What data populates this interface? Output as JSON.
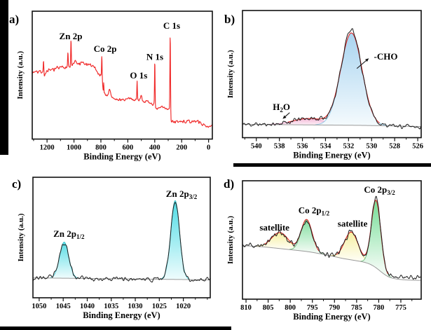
{
  "figure": {
    "background": "#ffffff",
    "axis_color": "#111111",
    "panel_ids": [
      "a",
      "b",
      "c",
      "d"
    ]
  },
  "chart_data": [
    {
      "id": "a",
      "panel_label": "a)",
      "type": "line",
      "title": "",
      "xlabel": "Binding Energy (eV)",
      "ylabel": "Intensity (a.u.)",
      "x_range": [
        1310,
        -28
      ],
      "x_ticks": [
        1200,
        1000,
        800,
        600,
        400,
        200,
        0
      ],
      "x_minor_step": 100,
      "ylim": [
        0,
        100
      ],
      "grid": false,
      "line_color": "#f02a2a",
      "noise_amplitude": 0.85,
      "base_points": [
        [
          1308,
          52
        ],
        [
          1295,
          52.5
        ],
        [
          1283,
          53.5
        ],
        [
          1270,
          52.5
        ],
        [
          1258,
          53
        ],
        [
          1246,
          52.2
        ],
        [
          1236,
          53
        ],
        [
          1230,
          52.5
        ],
        [
          1220,
          49.8
        ],
        [
          1212,
          51.5
        ],
        [
          1204,
          53
        ],
        [
          1196,
          52.2
        ],
        [
          1188,
          53.8
        ],
        [
          1180,
          53
        ],
        [
          1172,
          54.5
        ],
        [
          1164,
          53.5
        ],
        [
          1156,
          55
        ],
        [
          1148,
          54.2
        ],
        [
          1140,
          55.3
        ],
        [
          1132,
          54.6
        ],
        [
          1124,
          56.2
        ],
        [
          1116,
          55.2
        ],
        [
          1108,
          55.8
        ],
        [
          1100,
          55.4
        ],
        [
          1092,
          56.2
        ],
        [
          1084,
          56.8
        ],
        [
          1076,
          56.2
        ],
        [
          1068,
          56.6
        ],
        [
          1060,
          56.2
        ],
        [
          1052,
          56.5
        ],
        [
          1044,
          56.2
        ],
        [
          1036,
          56.6
        ],
        [
          1028,
          56.2
        ],
        [
          1020,
          57
        ],
        [
          1012,
          57.8
        ],
        [
          1004,
          58.8
        ],
        [
          996,
          60
        ],
        [
          988,
          60.8
        ],
        [
          980,
          59.2
        ],
        [
          972,
          58.6
        ],
        [
          964,
          59.2
        ],
        [
          956,
          58.4
        ],
        [
          948,
          59
        ],
        [
          940,
          60
        ],
        [
          932,
          59.6
        ],
        [
          924,
          58.6
        ],
        [
          916,
          58.2
        ],
        [
          908,
          58.6
        ],
        [
          900,
          58.2
        ],
        [
          892,
          57.8
        ],
        [
          884,
          57.6
        ],
        [
          876,
          58
        ],
        [
          868,
          57.2
        ],
        [
          860,
          57.6
        ],
        [
          852,
          56.8
        ],
        [
          844,
          56.2
        ],
        [
          836,
          54.4
        ],
        [
          828,
          52.6
        ],
        [
          820,
          51
        ],
        [
          812,
          50.2
        ],
        [
          806,
          50
        ],
        [
          800,
          50.4
        ],
        [
          796,
          49.8
        ],
        [
          791,
          47.5
        ],
        [
          787,
          43
        ],
        [
          784,
          39.5
        ],
        [
          781,
          36.5
        ],
        [
          777,
          35
        ],
        [
          771,
          35.6
        ],
        [
          764,
          34.6
        ],
        [
          757,
          34
        ],
        [
          750,
          34.6
        ],
        [
          743,
          36.6
        ],
        [
          736,
          38
        ],
        [
          730,
          36.6
        ],
        [
          723,
          34
        ],
        [
          716,
          32.6
        ],
        [
          709,
          32
        ],
        [
          700,
          31.5
        ],
        [
          690,
          31
        ],
        [
          678,
          30.6
        ],
        [
          666,
          30.5
        ],
        [
          654,
          30.8
        ],
        [
          642,
          31.4
        ],
        [
          632,
          30.8
        ],
        [
          622,
          30.5
        ],
        [
          612,
          30.8
        ],
        [
          602,
          31
        ],
        [
          592,
          31.4
        ],
        [
          582,
          32
        ],
        [
          572,
          31.5
        ],
        [
          562,
          31
        ],
        [
          552,
          30.8
        ],
        [
          542,
          30.6
        ],
        [
          534,
          30.5
        ],
        [
          526,
          30.4
        ],
        [
          518,
          30.6
        ],
        [
          511,
          31.8
        ],
        [
          504,
          33.4
        ],
        [
          497,
          33
        ],
        [
          490,
          30.6
        ],
        [
          483,
          30
        ],
        [
          475,
          29.5
        ],
        [
          466,
          29.2
        ],
        [
          457,
          28.9
        ],
        [
          448,
          28.7
        ],
        [
          439,
          28.3
        ],
        [
          430,
          28
        ],
        [
          421,
          27.7
        ],
        [
          413,
          27.4
        ],
        [
          407,
          27.1
        ],
        [
          402,
          26.2
        ],
        [
          398,
          23.6
        ],
        [
          393,
          23.2
        ],
        [
          387,
          23.3
        ],
        [
          380,
          23.5
        ],
        [
          373,
          23.7
        ],
        [
          365,
          24
        ],
        [
          357,
          24.6
        ],
        [
          350,
          25.2
        ],
        [
          343,
          25
        ],
        [
          336,
          24.8
        ],
        [
          329,
          24.6
        ],
        [
          322,
          24.1
        ],
        [
          315,
          23.9
        ],
        [
          308,
          23.6
        ],
        [
          301,
          23.5
        ],
        [
          294,
          23.8
        ],
        [
          288,
          22
        ],
        [
          283,
          16.5
        ],
        [
          278,
          14.5
        ],
        [
          272,
          13.9
        ],
        [
          265,
          13.6
        ],
        [
          257,
          13.7
        ],
        [
          249,
          13.4
        ],
        [
          241,
          13.7
        ],
        [
          233,
          13.5
        ],
        [
          225,
          13.7
        ],
        [
          217,
          13.4
        ],
        [
          209,
          13.6
        ],
        [
          201,
          13.4
        ],
        [
          193,
          13.7
        ],
        [
          185,
          13.5
        ],
        [
          177,
          13.6
        ],
        [
          169,
          13.4
        ],
        [
          161,
          13.6
        ],
        [
          153,
          13.8
        ],
        [
          146,
          14
        ],
        [
          139,
          13.7
        ],
        [
          131,
          13.5
        ],
        [
          123,
          13.7
        ],
        [
          115,
          13.6
        ],
        [
          107,
          13.7
        ],
        [
          99,
          13.6
        ],
        [
          93,
          14.4
        ],
        [
          87,
          14.7
        ],
        [
          81,
          14.1
        ],
        [
          74,
          13.3
        ],
        [
          67,
          13
        ],
        [
          60,
          12.8
        ],
        [
          53,
          12.2
        ],
        [
          46,
          11.2
        ],
        [
          39,
          11
        ],
        [
          31,
          10.8
        ],
        [
          23,
          10.6
        ],
        [
          15,
          10.4
        ],
        [
          7,
          10.3
        ],
        [
          0,
          10.2
        ]
      ],
      "spikes": [
        {
          "name": "bump-1226",
          "center": 1226,
          "sigma": 2.2,
          "amp": 9
        },
        {
          "name": "Zn 2p1/2",
          "center": 1045,
          "sigma": 2.2,
          "amp": 11
        },
        {
          "name": "Zn 2p3/2",
          "center": 1022,
          "sigma": 2.2,
          "amp": 20
        },
        {
          "name": "Co 2p1/2",
          "center": 793,
          "sigma": 2.0,
          "amp": 16.5
        },
        {
          "name": "Co 2p3/2",
          "center": 779,
          "sigma": 1.6,
          "amp": 9
        },
        {
          "name": "O 1s",
          "center": 531,
          "sigma": 2.0,
          "amp": 15
        },
        {
          "name": "N 1s",
          "center": 399.5,
          "sigma": 2.0,
          "amp": 36
        },
        {
          "name": "C 1s",
          "center": 285,
          "sigma": 2.2,
          "amp": 64
        }
      ],
      "annotations": [
        {
          "parts": [
            {
              "t": "Zn 2p"
            }
          ],
          "fx": 0.214,
          "fy": 0.219
        },
        {
          "parts": [
            {
              "t": "Co 2p"
            }
          ],
          "fx": 0.405,
          "fy": 0.318
        },
        {
          "parts": [
            {
              "t": "O 1s"
            }
          ],
          "fx": 0.591,
          "fy": 0.526
        },
        {
          "parts": [
            {
              "t": "N 1s"
            }
          ],
          "fx": 0.681,
          "fy": 0.381
        },
        {
          "parts": [
            {
              "t": "C 1s"
            }
          ],
          "fx": 0.774,
          "fy": 0.137
        }
      ]
    },
    {
      "id": "b",
      "panel_label": "b)",
      "type": "area",
      "title": "",
      "xlabel": "Binding Energy (eV)",
      "ylabel": "Intensity (a.u.)",
      "x_range": [
        541.2,
        525.7
      ],
      "x_ticks": [
        540,
        538,
        536,
        534,
        532,
        530,
        528,
        526
      ],
      "x_minor_step": 1,
      "baseline_points": [
        [
          541.2,
          0.105
        ],
        [
          531,
          0.097
        ],
        [
          525.7,
          0.088
        ]
      ],
      "baseline_color": "#9a9a9a",
      "envelope_color": "#e02828",
      "data_color": "#1c1c1c",
      "noise_amplitude": 0.014,
      "peaks": [
        {
          "name": "H2O",
          "center": 535.45,
          "sigma": 1.35,
          "amp": 0.05,
          "fill_top": "#f3b9d7",
          "fill_bottom": "#fdf0f7",
          "stroke": "#ec9fc8"
        },
        {
          "name": "-CHO",
          "center": 531.75,
          "sigma": 0.92,
          "amp": 0.725,
          "fill_top": "#a9d4f0",
          "fill_bottom": "#f4fafd",
          "stroke": "#8ec6e6"
        }
      ],
      "data_extra": [
        {
          "center": 531.9,
          "sigma": 0.3,
          "amp": 0.03
        }
      ],
      "annotations": [
        {
          "parts": [
            {
              "t": "-CHO"
            }
          ],
          "fx": 0.802,
          "fy": 0.386,
          "arrow": {
            "x1": 0.64,
            "y1": 0.456,
            "x2": 0.707,
            "y2": 0.376
          }
        },
        {
          "parts": [
            {
              "t": "H"
            },
            {
              "t": "2",
              "sub": true
            },
            {
              "t": "O"
            }
          ],
          "fx": 0.218,
          "fy": 0.782,
          "arrow": {
            "x1": 0.264,
            "y1": 0.803,
            "x2": 0.225,
            "y2": 0.852
          }
        }
      ]
    },
    {
      "id": "c",
      "panel_label": "c)",
      "type": "area",
      "title": "",
      "xlabel": "Binding Energy (eV)",
      "ylabel": "Intensity (a.u.)",
      "x_range": [
        1051.3,
        1014.4
      ],
      "x_ticks": [
        1050,
        1045,
        1040,
        1035,
        1030,
        1025,
        1020
      ],
      "x_minor_step": 2.5,
      "baseline_points": [
        [
          1051.3,
          0.165
        ],
        [
          1014.4,
          0.149
        ]
      ],
      "baseline_color": "#9a9a9a",
      "data_color": "#1c1c1c",
      "noise_amplitude": 0.016,
      "peaks": [
        {
          "name": "Zn 2p1/2",
          "center": 1044.8,
          "sigma": 0.95,
          "amp": 0.3,
          "fill_top": "#59dde5",
          "fill_bottom": "#f0fcfd",
          "stroke": "#3fc3cd"
        },
        {
          "name": "Zn 2p3/2",
          "center": 1021.7,
          "sigma": 0.92,
          "amp": 0.655,
          "fill_top": "#4fdce5",
          "fill_bottom": "#effcfd",
          "stroke": "#3fc3cd"
        }
      ],
      "annotations": [
        {
          "parts": [
            {
              "t": "Zn 2p"
            },
            {
              "t": "1/2",
              "sub": true
            }
          ],
          "fx": 0.203,
          "fy": 0.494
        },
        {
          "parts": [
            {
              "t": "Zn 2p"
            },
            {
              "t": "3/2",
              "sub": true
            }
          ],
          "fx": 0.838,
          "fy": 0.163
        }
      ]
    },
    {
      "id": "d",
      "panel_label": "d)",
      "type": "area",
      "title": "",
      "xlabel": "Binding Energy (eV)",
      "ylabel": "Intensity (a.u.)",
      "x_range": [
        810.8,
        770.4
      ],
      "x_ticks": [
        810,
        805,
        800,
        795,
        790,
        785,
        780,
        775
      ],
      "x_minor_step": 2.5,
      "baseline_points": [
        [
          810.8,
          0.452
        ],
        [
          806,
          0.442
        ],
        [
          801,
          0.422
        ],
        [
          796,
          0.402
        ],
        [
          791.5,
          0.372
        ],
        [
          788,
          0.342
        ],
        [
          784.5,
          0.322
        ],
        [
          782,
          0.302
        ],
        [
          780,
          0.252
        ],
        [
          778.5,
          0.195
        ],
        [
          777,
          0.175
        ],
        [
          774.5,
          0.163
        ],
        [
          770.4,
          0.158
        ]
      ],
      "baseline_smooth": 9,
      "baseline_color": "#9a9a9a",
      "envelope_color": "#e02828",
      "data_color": "#1c1c1c",
      "noise_amplitude": 0.018,
      "peaks": [
        {
          "name": "satellite-1",
          "center": 802.3,
          "sigma": 1.9,
          "amp": 0.135,
          "fill_top": "#f6f0a2",
          "fill_bottom": "#fefdf2",
          "stroke": "#d8c96a"
        },
        {
          "name": "satellite-2",
          "center": 786.2,
          "sigma": 1.55,
          "amp": 0.235,
          "fill_top": "#f6f0a2",
          "fill_bottom": "#fefdf2",
          "stroke": "#d8c96a"
        },
        {
          "name": "Co 2p1/2",
          "center": 796.3,
          "sigma": 1.25,
          "amp": 0.27,
          "fill_top": "#82dfa0",
          "fill_bottom": "#f0faf2",
          "stroke": "#6cbf7e"
        },
        {
          "name": "Co 2p3/2",
          "center": 780.6,
          "sigma": 1.05,
          "amp": 0.57,
          "fill_top": "#74dd96",
          "fill_bottom": "#eefaf1",
          "stroke": "#6cbf7e"
        }
      ],
      "data_extra": [
        {
          "center": 780.4,
          "sigma": 0.6,
          "amp": 0.035
        },
        {
          "center": 774.5,
          "sigma": 3.2,
          "amp": 0.022
        }
      ],
      "annotations": [
        {
          "parts": [
            {
              "t": "satellite"
            }
          ],
          "fx": 0.179,
          "fy": 0.42
        },
        {
          "parts": [
            {
              "t": "Co 2p"
            },
            {
              "t": "1/2",
              "sub": true
            }
          ],
          "fx": 0.4,
          "fy": 0.275
        },
        {
          "parts": [
            {
              "t": "satellite"
            }
          ],
          "fx": 0.616,
          "fy": 0.388
        },
        {
          "parts": [
            {
              "t": "Co 2p"
            },
            {
              "t": "3/2",
              "sub": true
            }
          ],
          "fx": 0.767,
          "fy": 0.1
        }
      ]
    }
  ]
}
